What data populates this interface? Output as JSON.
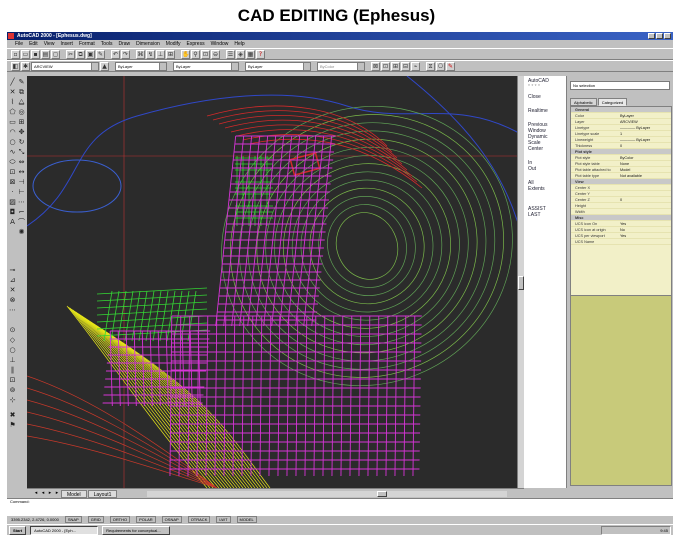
{
  "slide": {
    "title": "CAD EDITING (Ephesus)"
  },
  "window": {
    "title": "AutoCAD 2000 - [Ephesus.dwg]"
  },
  "menu": [
    "File",
    "Edit",
    "View",
    "Insert",
    "Format",
    "Tools",
    "Draw",
    "Dimension",
    "Modify",
    "Express",
    "Window",
    "Help"
  ],
  "layers_toolbar": {
    "layer": "ARCVIEW",
    "color": "ByLayer",
    "linetype": "ByLayer",
    "lineweight": "ByLayer",
    "plotstyle": "ByColor"
  },
  "screen_menu": {
    "header": [
      "AutoCAD",
      "* * * *"
    ],
    "items": [
      "Close",
      "Realtime",
      "Previous",
      "Window",
      "Dynamic",
      "Scale",
      "Center",
      "In",
      "Out",
      "All",
      "Extents"
    ],
    "footer": [
      "ASSIST",
      "LAST"
    ]
  },
  "properties": {
    "selection": "No selection",
    "tabs": [
      "Alphabetic",
      "Categorized"
    ],
    "rows": [
      {
        "cat": true,
        "k": "General"
      },
      {
        "k": "Color",
        "v": "ByLayer"
      },
      {
        "k": "Layer",
        "v": "ARCVIEW"
      },
      {
        "k": "Linetype",
        "v": "———— ByLayer"
      },
      {
        "k": "Linetype scale",
        "v": "1"
      },
      {
        "k": "Lineweight",
        "v": "———— ByLayer"
      },
      {
        "k": "Thickness",
        "v": "0"
      },
      {
        "cat": true,
        "k": "Plot style"
      },
      {
        "k": "Plot style",
        "v": "ByColor"
      },
      {
        "k": "Plot style table",
        "v": "None"
      },
      {
        "k": "Plot table attached to",
        "v": "Model"
      },
      {
        "k": "Plot table type",
        "v": "Not available"
      },
      {
        "cat": true,
        "k": "View"
      },
      {
        "k": "Center X",
        "v": ""
      },
      {
        "k": "Center Y",
        "v": ""
      },
      {
        "k": "Center Z",
        "v": "0"
      },
      {
        "k": "Height",
        "v": ""
      },
      {
        "k": "Width",
        "v": ""
      },
      {
        "cat": true,
        "k": "Misc"
      },
      {
        "k": "UCS icon On",
        "v": "Yes"
      },
      {
        "k": "UCS icon at origin",
        "v": "No"
      },
      {
        "k": "UCS per viewport",
        "v": "Yes"
      },
      {
        "k": "UCS Name",
        "v": ""
      }
    ]
  },
  "tabs": {
    "model": "Model",
    "layout": "Layout1"
  },
  "command": {
    "line1": "Command:",
    "line2": ""
  },
  "status": {
    "coords": "3395.2342, 2.4726, 0.0000",
    "modes": [
      "SNAP",
      "GRID",
      "ORTHO",
      "POLAR",
      "OSNAP",
      "OTRACK",
      "LWT",
      "MODEL"
    ]
  },
  "taskbar": {
    "start": "Start",
    "tasks": [
      "AutoCAD 2000 - [Eph...",
      "Requirements for conceptual..."
    ],
    "clock": "9:45"
  },
  "colors": {
    "canvas": "#2b2b2b",
    "contour_yellow": "#e6e61a",
    "grid_magenta": "#d534d5",
    "grid_green": "#34d534",
    "contour_red": "#d12a2a"
  }
}
